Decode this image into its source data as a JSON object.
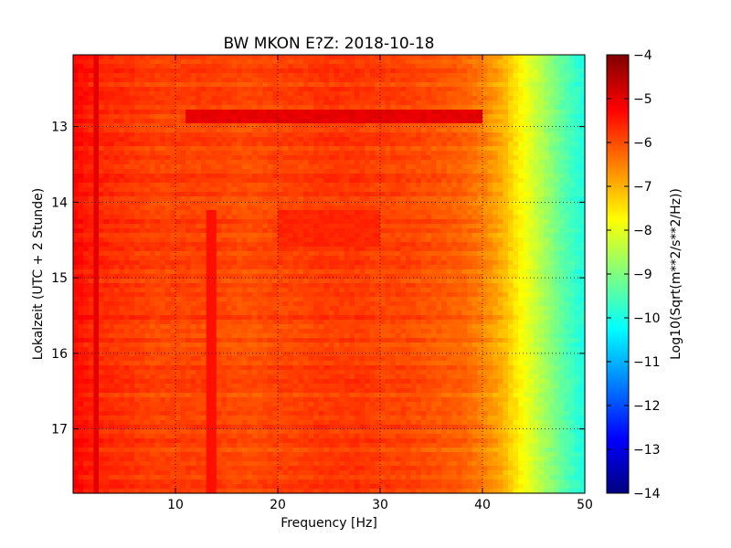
{
  "chart_data": {
    "type": "heatmap",
    "title": "BW MKON E?Z: 2018-10-18",
    "xlabel": "Frequency [Hz]",
    "ylabel": "Lokalzeit (UTC + 2 Stunde)",
    "colorbar_label": "Log10(Sqrt(m**2/s**2/Hz))",
    "xlim": [
      0,
      50
    ],
    "ylim": [
      17.85,
      12.05
    ],
    "x_ticks": [
      10,
      20,
      30,
      40,
      50
    ],
    "y_ticks": [
      13,
      14,
      15,
      16,
      17
    ],
    "colorbar_range": [
      -14,
      -4
    ],
    "colorbar_ticks": [
      -4,
      -5,
      -6,
      -7,
      -8,
      -9,
      -10,
      -11,
      -12,
      -13,
      -14
    ],
    "colormap": "jet",
    "grid": true,
    "x": [
      0,
      2,
      4,
      6,
      8,
      10,
      12,
      14,
      16,
      18,
      20,
      22,
      24,
      26,
      28,
      30,
      32,
      34,
      36,
      38,
      40,
      42,
      44,
      46,
      48,
      50
    ],
    "values_by_frequency": [
      -5.3,
      -5.6,
      -5.7,
      -5.8,
      -5.9,
      -5.9,
      -5.9,
      -5.9,
      -6.0,
      -6.0,
      -5.9,
      -5.9,
      -5.8,
      -5.8,
      -5.8,
      -5.9,
      -5.9,
      -6.0,
      -6.1,
      -6.2,
      -6.5,
      -7.0,
      -7.8,
      -8.6,
      -9.4,
      -10.0
    ],
    "features": [
      {
        "type": "band",
        "time_range": [
          12.75,
          12.95
        ],
        "freq_range": [
          11,
          40
        ],
        "value": -5.0
      },
      {
        "type": "band",
        "time_range": [
          14.1,
          14.6
        ],
        "freq_range": [
          20,
          30
        ],
        "value": -5.6
      },
      {
        "type": "line",
        "frequency": 13.5,
        "time_range": [
          14.1,
          17.85
        ],
        "value": -5.4
      },
      {
        "type": "line",
        "frequency": 2.3,
        "time_range": [
          12.05,
          17.85
        ],
        "value": -5.0
      }
    ]
  }
}
